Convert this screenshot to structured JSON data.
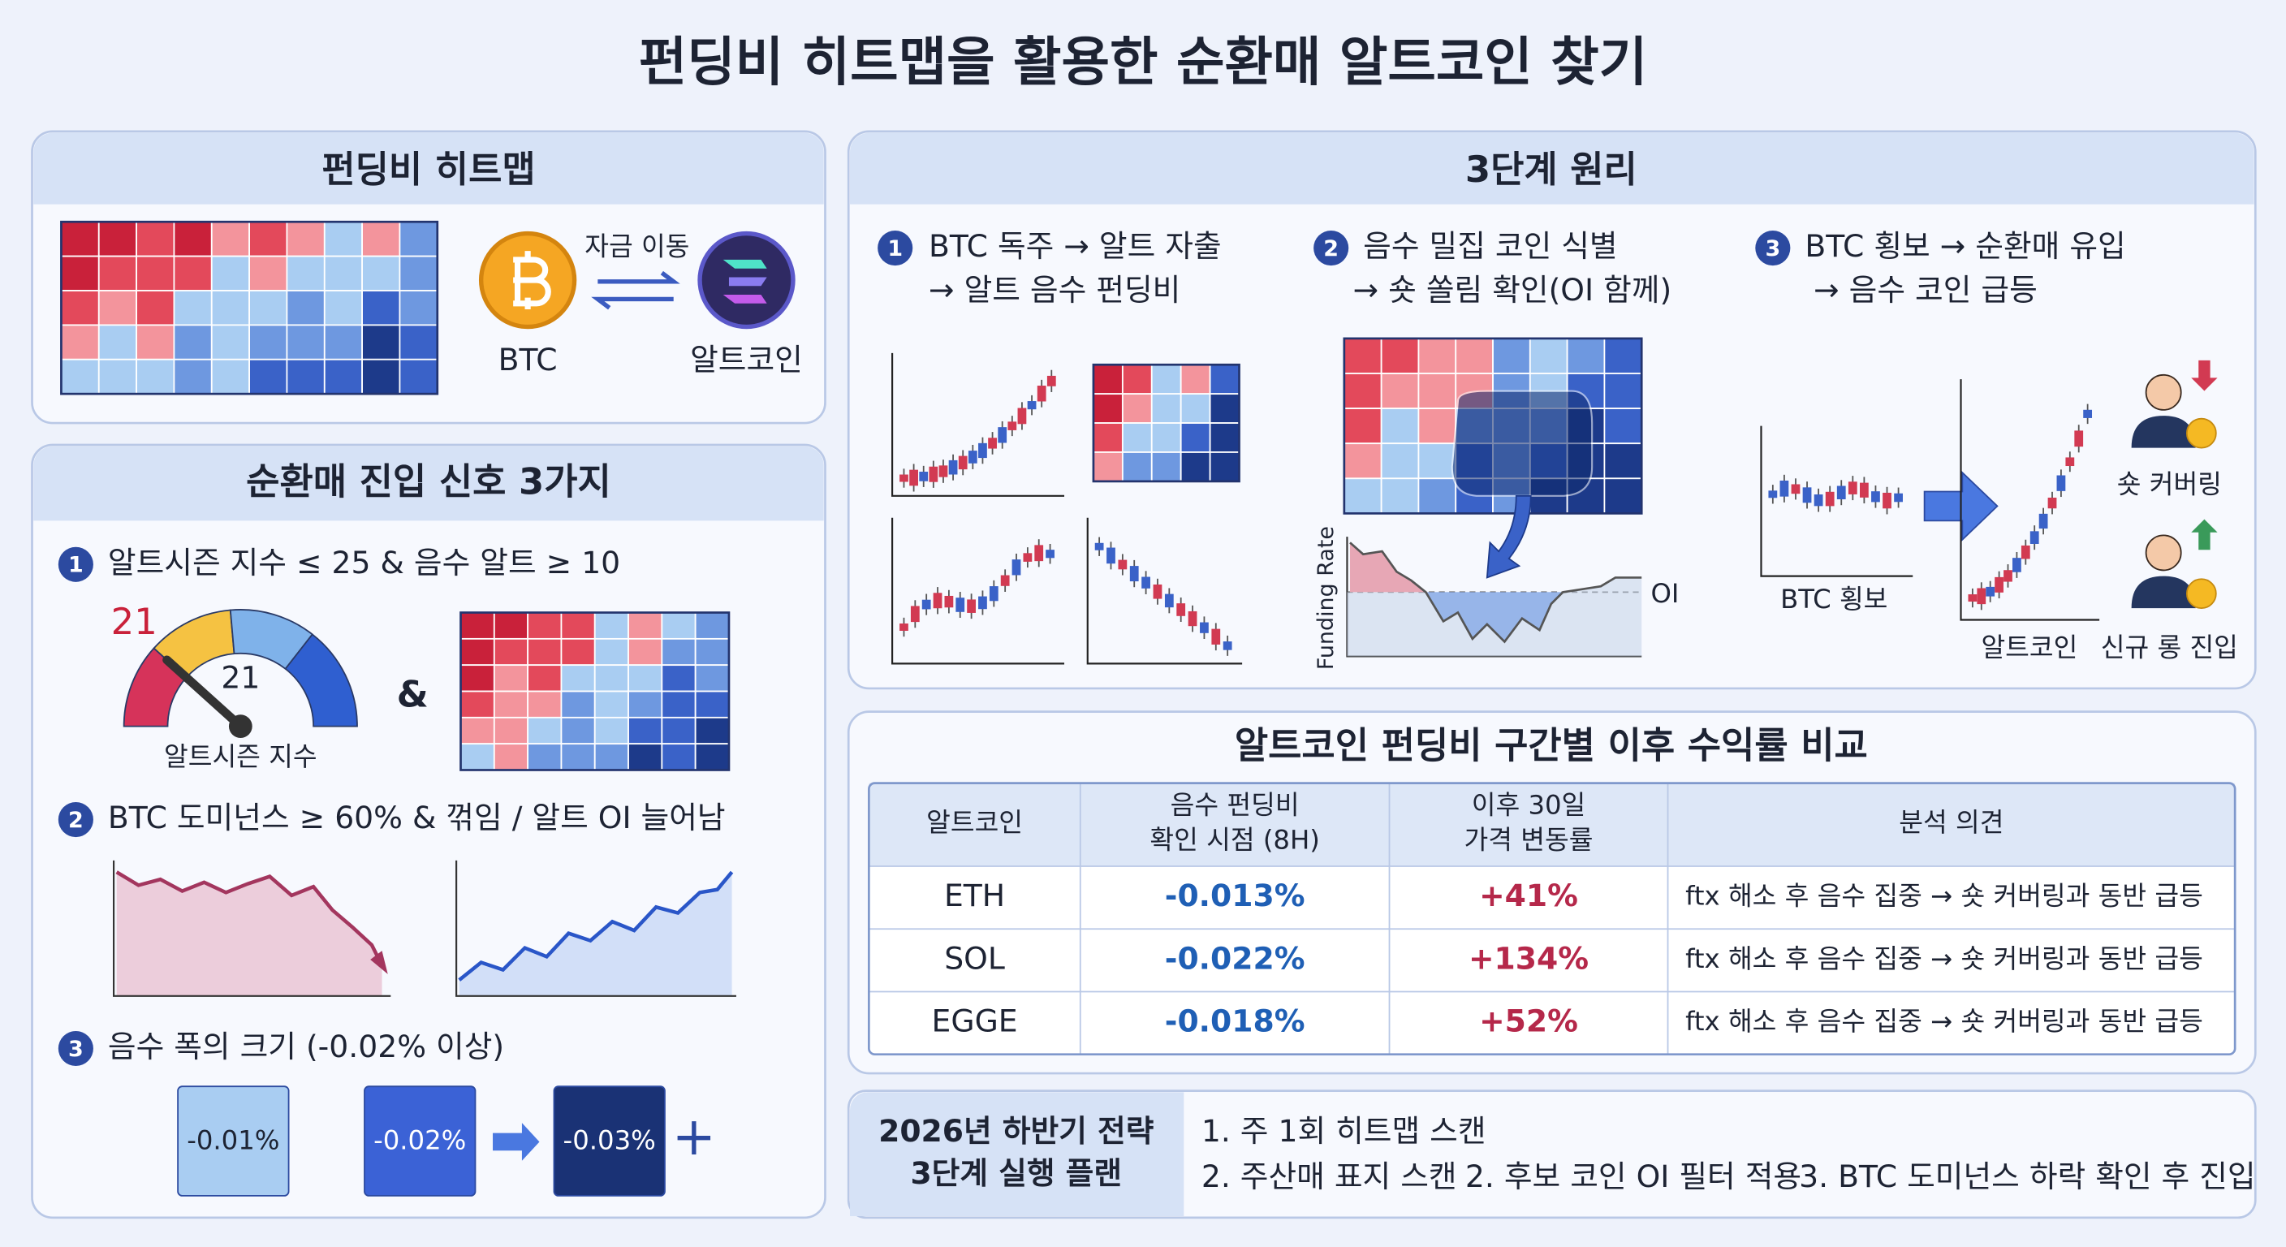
{
  "title": "펀딩비 히트맵을 활용한 순환매 알트코인 찾기",
  "heatmap_panel": {
    "title": "펀딩비 히트맵",
    "flow_label": "자금 이동",
    "from": "BTC",
    "to": "알트코인"
  },
  "signals_panel": {
    "title": "순환매 진입 신호 3가지",
    "items": [
      {
        "num": "1",
        "text": "알트시즌 지수 ≤ 25 & 음수 알트 ≥ 10"
      },
      {
        "num": "2",
        "text": "BTC 도미넌스 ≥ 60% & 꺾임 / 알트 OI 늘어남"
      },
      {
        "num": "3",
        "text": "음수 폭의 크기 (-0.02% 이상)"
      }
    ],
    "gauge": {
      "value_label": "21",
      "needle_label": "21",
      "caption": "알트시즌 지수"
    },
    "and": "&",
    "levels": [
      "-0.01%",
      "-0.02%",
      "-0.03%"
    ],
    "plus": "+"
  },
  "principle_panel": {
    "title": "3단계 원리",
    "steps": [
      {
        "num": "1",
        "lines": [
          "BTC 독주 → 알트 자출",
          "→ 알트 음수 펀딩비"
        ]
      },
      {
        "num": "2",
        "lines": [
          "음수 밀집 코인 식별",
          "→ 숏 쏠림 확인(OI 함께)"
        ]
      },
      {
        "num": "3",
        "lines": [
          "BTC 횡보 → 순환매 유입",
          "→ 음수 코인 급등"
        ]
      }
    ],
    "funding_axis": "Funding Rate",
    "oi_label": "OI",
    "sideways_label": "BTC 횡보",
    "alt_label": "알트코인",
    "short_cover": "숏 커버링",
    "new_long": "신규 롱 진입"
  },
  "table": {
    "title": "알트코인 펀딩비 구간별 이후 수익률 비교",
    "headers": [
      [
        "알트코인"
      ],
      [
        "음수 펀딩비",
        "확인 시점 (8H)"
      ],
      [
        "이후 30일",
        "가격 변동률"
      ],
      [
        "분석 의견"
      ]
    ],
    "rows": [
      [
        "ETH",
        "-0.013%",
        "+41%",
        "ftx 해소 후 음수 집중 → 숏 커버링과 동반 급등"
      ],
      [
        "SOL",
        "-0.022%",
        "+134%",
        "ftx 해소 후 음수 집중 → 숏 커버링과 동반 급등"
      ],
      [
        "EGGE",
        "-0.018%",
        "+52%",
        "ftx 해소 후 음수 집중 → 숏 커버링과 동반 급등"
      ]
    ]
  },
  "plan": {
    "title_lines": [
      "2026년 하반기 전략",
      "3단계 실행 플랜"
    ],
    "items": [
      "1. 주 1회 히트맵 스캔",
      "2. 주산매 표지 스캔",
      "2. 후보 코인 OI 필터 적용",
      "3. BTC 도미넌스 하락 확인 후 진입"
    ]
  }
}
